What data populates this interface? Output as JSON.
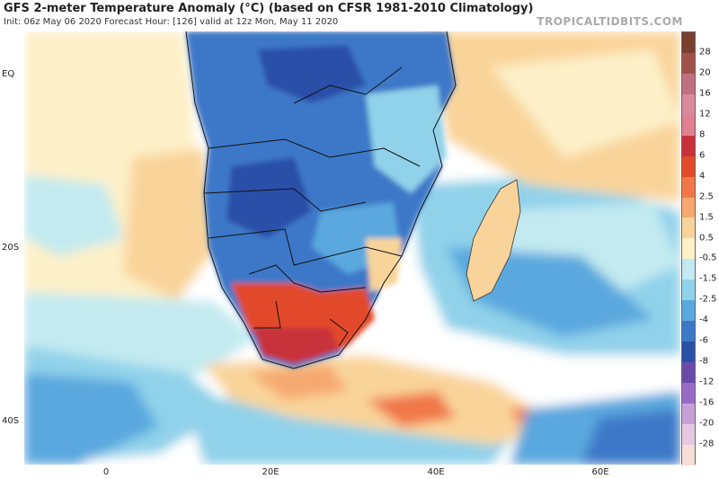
{
  "header": {
    "title": "GFS 2-meter Temperature Anomaly (°C) (based on CFSR 1981-2010 Climatology)",
    "subtitle": "Init: 06z May 06 2020   Forecast Hour: [126]   valid at 12z Mon, May 11 2020",
    "brand": "TROPICALTIDBITS.COM"
  },
  "axes": {
    "lat_labels": [
      "EQ",
      "20S",
      "40S"
    ],
    "lon_labels": [
      "0",
      "20E",
      "40E",
      "60E"
    ]
  },
  "legend": {
    "labels": [
      "28",
      "20",
      "16",
      "12",
      "8",
      "6",
      "4",
      "2.5",
      "1.5",
      "0.5",
      "-0.5",
      "-1.5",
      "-2.5",
      "-4",
      "-6",
      "-8",
      "-12",
      "-16",
      "-20",
      "-28"
    ],
    "colors": [
      "#7b3f2e",
      "#a0524a",
      "#c07080",
      "#d88a9c",
      "#e08090",
      "#c8303a",
      "#e24a2a",
      "#f07848",
      "#f6a870",
      "#f9d49a",
      "#fdf0c8",
      "#c2eaf0",
      "#90d2ea",
      "#5aa8de",
      "#3c78c8",
      "#2a50a8",
      "#6a4aa8",
      "#9a6ac8",
      "#c8a0d8",
      "#e6c8e0",
      "#f7ddd6"
    ]
  },
  "colors": {
    "warm_strong": "#c8303a",
    "warm": "#e24a2a",
    "warm_mild": "#f6a870",
    "neutral": "#fdf0c8",
    "cool_mild": "#90d2ea",
    "cool": "#3c78c8",
    "cool_strong": "#2a50a8"
  }
}
